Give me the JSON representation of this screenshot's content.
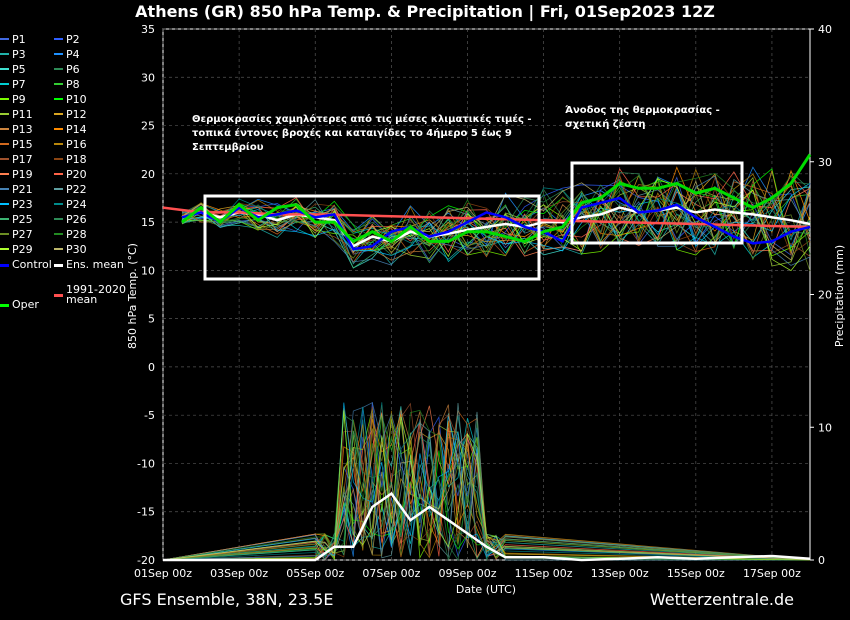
{
  "header": {
    "title": "Athens  (GR)  850 hPa Temp. & Precipitation | Fri, 01Sep2023 12Z"
  },
  "footer": {
    "model": "GFS Ensemble, 38N, 23.5E",
    "source": "Wetterzentrale.de"
  },
  "annotations": {
    "cool": "Θερμοκρασίες χαμηλότερες από τις μέσες κλιματικές τιμές - τοπικά έντονες βροχές και καταιγίδες το 4ήμερο 5 έως 9 Σεπτεμβρίου",
    "warm": "Άνοδος της θερμοκρασίας - σχετική ζέστη"
  },
  "chart_data": {
    "type": "line",
    "title": "Athens  (GR)  850 hPa Temp. & Precipitation | Fri, 01Sep2023 12Z",
    "xlabel": "Date (UTC)",
    "ylabel": "850 hPa Temp. (°C)",
    "y2label": "Precipitation (mm)",
    "ylim": [
      -20,
      35
    ],
    "y2lim": [
      0,
      40
    ],
    "x_ticks": [
      "01Sep 00z",
      "03Sep 00z",
      "05Sep 00z",
      "07Sep 00z",
      "09Sep 00z",
      "11Sep 00z",
      "13Sep 00z",
      "15Sep 00z",
      "17Sep 00z"
    ],
    "y_ticks": [
      35,
      30,
      25,
      20,
      15,
      10,
      5,
      0,
      -5,
      -10,
      -15,
      -20
    ],
    "y2_ticks": [
      40,
      30,
      20,
      10,
      0
    ],
    "grid": true,
    "legend_position": "left",
    "legend": {
      "members": [
        "P1",
        "P2",
        "P3",
        "P4",
        "P5",
        "P6",
        "P7",
        "P8",
        "P9",
        "P10",
        "P11",
        "P12",
        "P13",
        "P14",
        "P15",
        "P16",
        "P17",
        "P18",
        "P19",
        "P20",
        "P21",
        "P22",
        "P23",
        "P24",
        "P25",
        "P26",
        "P27",
        "P28",
        "P29",
        "P30",
        "Control",
        "Ens. mean",
        "1991-2020 mean",
        "Oper"
      ],
      "colors": [
        "#4169e1",
        "#3060ff",
        "#20b2aa",
        "#1e90ff",
        "#40e0d0",
        "#2e8b57",
        "#00ced1",
        "#32cd32",
        "#7cfc00",
        "#00ff00",
        "#9acd32",
        "#daa520",
        "#cd853f",
        "#ff8c00",
        "#d2691e",
        "#b8860b",
        "#a0522d",
        "#8b4513",
        "#ff7f50",
        "#ff6347",
        "#4682b4",
        "#5f9ea0",
        "#00bfff",
        "#008b8b",
        "#3cb371",
        "#2e8b57",
        "#6b8e23",
        "#228b22",
        "#adff2f",
        "#bdb76b",
        "#0000ff",
        "#ffffff",
        "#ff5050",
        "#00ff00"
      ]
    },
    "series": [
      {
        "name": "Ens. mean",
        "x_days": [
          0.5,
          1,
          1.5,
          2,
          2.5,
          3,
          3.5,
          4,
          4.5,
          5,
          5.5,
          6,
          6.5,
          7,
          7.5,
          8,
          8.5,
          9,
          9.5,
          10,
          10.5,
          11,
          11.5,
          12,
          12.5,
          13,
          13.5,
          14,
          14.5,
          15,
          15.5,
          16,
          16.5,
          17
        ],
        "values": [
          15.5,
          16,
          15.5,
          16,
          15.8,
          15.2,
          15.8,
          15.5,
          15.2,
          12.5,
          13.5,
          13,
          14,
          13.5,
          13.8,
          14.2,
          14.5,
          14.8,
          14.5,
          15,
          15,
          15.5,
          15.8,
          16.5,
          16,
          16.2,
          16.5,
          16,
          16.3,
          16,
          15.8,
          15.5,
          15.2,
          14.8
        ]
      },
      {
        "name": "1991-2020 mean",
        "x_days": [
          0,
          1,
          2,
          3,
          4,
          5,
          6,
          7,
          8,
          9,
          10,
          11,
          12,
          13,
          14,
          15,
          16,
          17
        ],
        "values": [
          16.5,
          16,
          16,
          15.8,
          15.8,
          15.7,
          15.6,
          15.5,
          15.4,
          15.3,
          15.2,
          15.1,
          15,
          14.9,
          14.8,
          14.7,
          14.6,
          14.5
        ]
      },
      {
        "name": "Control",
        "x_days": [
          0.5,
          1,
          1.5,
          2,
          2.5,
          3,
          3.5,
          4,
          4.5,
          5,
          5.5,
          6,
          6.5,
          7,
          7.5,
          8,
          8.5,
          9,
          9.5,
          10,
          10.5,
          11,
          11.5,
          12,
          12.5,
          13,
          13.5,
          14,
          14.5,
          15,
          15.5,
          16,
          16.5,
          17
        ],
        "values": [
          15.5,
          16,
          15,
          16.5,
          15.5,
          15.8,
          16.2,
          15.5,
          15.8,
          12.2,
          12.5,
          14,
          14.5,
          13.5,
          14,
          15,
          16,
          15.5,
          14.5,
          14,
          13,
          16.5,
          17,
          17.5,
          16,
          16.2,
          16.8,
          15.5,
          14.5,
          13.5,
          12.8,
          13,
          14,
          14.5
        ]
      },
      {
        "name": "Oper",
        "x_days": [
          0.5,
          1,
          1.5,
          2,
          2.5,
          3,
          3.5,
          4,
          4.5,
          5,
          5.5,
          6,
          6.5,
          7,
          7.5,
          8,
          8.5,
          9,
          9.5,
          10,
          10.5,
          11,
          11.5,
          12,
          12.5,
          13,
          13.5,
          14,
          14.5,
          15,
          15.5,
          16,
          16.5,
          17
        ],
        "values": [
          15,
          16.5,
          15,
          16.8,
          15.2,
          16.5,
          16.8,
          15,
          15,
          13,
          14,
          13,
          14.5,
          13,
          13,
          14,
          14,
          13.5,
          13,
          14,
          14.5,
          17,
          17.5,
          19,
          18.5,
          18.5,
          19,
          18,
          18.5,
          17.5,
          16.5,
          17.5,
          19,
          22
        ]
      },
      {
        "name": "Ens. mean precipitation",
        "x_days": [
          0,
          4,
          4.5,
          5,
          5.5,
          6,
          6.5,
          7,
          7.5,
          8,
          8.5,
          9,
          10,
          11,
          12,
          13,
          14,
          15,
          16,
          17
        ],
        "values": [
          0,
          0,
          1,
          1,
          4,
          5,
          3,
          4,
          3,
          2,
          1,
          0.2,
          0.2,
          0,
          0.1,
          0.2,
          0.1,
          0.2,
          0.3,
          0.1
        ]
      }
    ]
  }
}
